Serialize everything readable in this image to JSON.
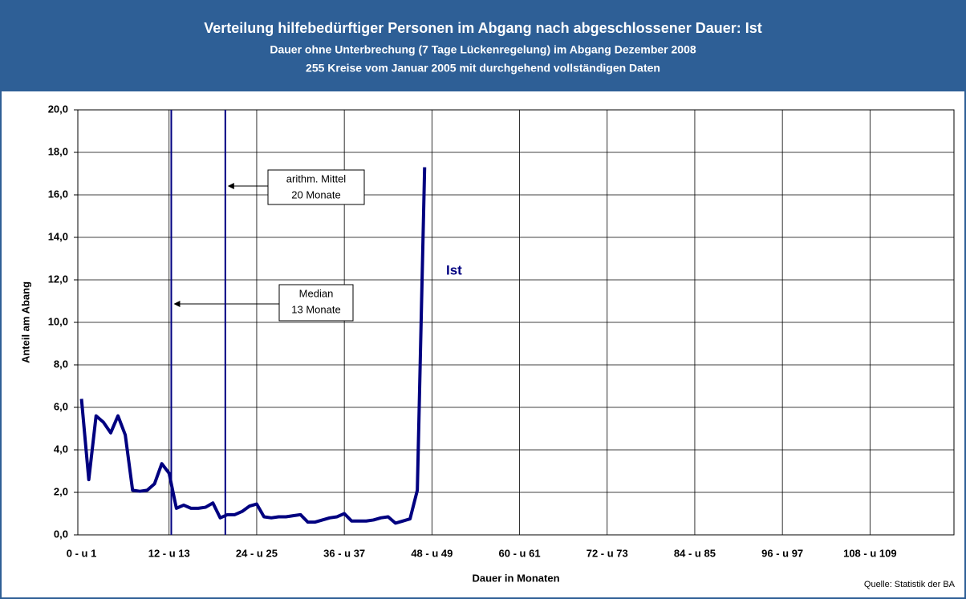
{
  "chart_data": {
    "type": "line",
    "title": "Verteilung hilfebedürftiger Personen im Abgang nach abgeschlossener Dauer: Ist",
    "subtitle": [
      "Dauer ohne Unterbrechung (7 Tage Lückenregelung) im Abgang Dezember 2008",
      "255 Kreise vom Januar 2005 mit durchgehend vollständigen Daten"
    ],
    "x_label": "Dauer in Monaten",
    "y_label": "Anteil am Abang",
    "source": "Quelle: Statistik der BA",
    "categories": [
      "0 - u 1",
      null,
      null,
      null,
      null,
      null,
      null,
      null,
      null,
      null,
      null,
      null,
      "12 - u 13",
      null,
      null,
      null,
      null,
      null,
      null,
      null,
      null,
      null,
      null,
      null,
      "24 - u 25",
      null,
      null,
      null,
      null,
      null,
      null,
      null,
      null,
      null,
      null,
      null,
      "36 - u 37",
      null,
      null,
      null,
      null,
      null,
      null,
      null,
      null,
      null,
      null,
      null,
      "48 - u 49",
      null,
      null,
      null,
      null,
      null,
      null,
      null,
      null,
      null,
      null,
      null,
      "60 - u 61",
      null,
      null,
      null,
      null,
      null,
      null,
      null,
      null,
      null,
      null,
      null,
      "72 - u 73",
      null,
      null,
      null,
      null,
      null,
      null,
      null,
      null,
      null,
      null,
      null,
      "84 - u 85",
      null,
      null,
      null,
      null,
      null,
      null,
      null,
      null,
      null,
      null,
      null,
      "96 - u 97",
      null,
      null,
      null,
      null,
      null,
      null,
      null,
      null,
      null,
      null,
      null,
      "108 - u 109",
      null,
      null,
      null,
      null,
      null,
      null,
      null,
      null,
      null,
      null,
      null
    ],
    "series": [
      {
        "name": "Ist",
        "color": "#000080",
        "values": [
          6.4,
          2.6,
          5.6,
          5.3,
          4.8,
          5.6,
          4.7,
          2.1,
          2.05,
          2.1,
          2.4,
          3.35,
          2.9,
          1.25,
          1.4,
          1.25,
          1.25,
          1.3,
          1.5,
          0.8,
          0.95,
          0.95,
          1.1,
          1.35,
          1.45,
          0.85,
          0.8,
          0.85,
          0.85,
          0.9,
          0.95,
          0.6,
          0.6,
          0.7,
          0.8,
          0.85,
          1.0,
          0.65,
          0.65,
          0.65,
          0.7,
          0.8,
          0.85,
          0.55,
          0.65,
          0.75,
          2.1,
          17.3,
          null,
          null,
          null,
          null,
          null,
          null,
          null,
          null,
          null,
          null,
          null,
          null,
          null,
          null,
          null,
          null,
          null,
          null,
          null,
          null,
          null,
          null,
          null,
          null,
          null,
          null,
          null,
          null,
          null,
          null,
          null,
          null,
          null,
          null,
          null,
          null,
          null,
          null,
          null,
          null,
          null,
          null,
          null,
          null,
          null,
          null,
          null,
          null,
          null,
          null,
          null,
          null,
          null,
          null,
          null,
          null,
          null,
          null,
          null,
          null,
          null,
          null,
          null,
          null,
          null,
          null,
          null,
          null,
          null,
          null,
          null,
          null
        ]
      }
    ],
    "reference_lines": [
      {
        "x": 12.3,
        "label": [
          "Median",
          "13 Monate"
        ]
      },
      {
        "x": 19.7,
        "label": [
          "arithm. Mittel",
          "20 Monate"
        ]
      }
    ],
    "ylim": [
      0,
      20
    ],
    "yticks": [
      {
        "value": 0,
        "label": "0,0"
      },
      {
        "value": 2,
        "label": "2,0"
      },
      {
        "value": 4,
        "label": "4,0"
      },
      {
        "value": 6,
        "label": "6,0"
      },
      {
        "value": 8,
        "label": "8,0"
      },
      {
        "value": 10,
        "label": "10,0"
      },
      {
        "value": 12,
        "label": "12,0"
      },
      {
        "value": 14,
        "label": "14,0"
      },
      {
        "value": 16,
        "label": "16,0"
      },
      {
        "value": 18,
        "label": "18,0"
      },
      {
        "value": 20,
        "label": "20,0"
      }
    ],
    "grid": true,
    "header_color": "#2e5f96"
  }
}
